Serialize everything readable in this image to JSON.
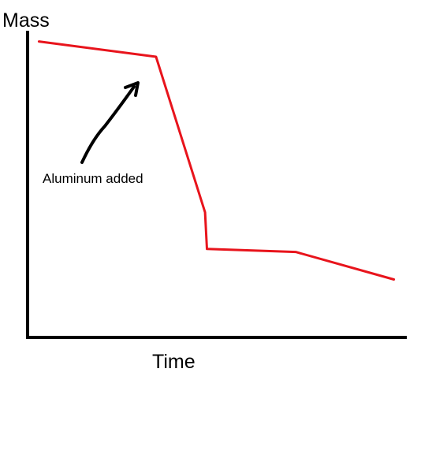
{
  "chart_data": {
    "type": "line",
    "title": "",
    "xlabel": "Time",
    "ylabel": "Mass",
    "grid": false,
    "legend": "none",
    "axis_ticks": false,
    "series": [
      {
        "color": "#e8141c",
        "points": [
          {
            "x": 0.03,
            "y": 0.97
          },
          {
            "x": 0.34,
            "y": 0.92
          },
          {
            "x": 0.47,
            "y": 0.41
          },
          {
            "x": 0.475,
            "y": 0.29
          },
          {
            "x": 0.71,
            "y": 0.28
          },
          {
            "x": 0.97,
            "y": 0.19
          }
        ]
      }
    ],
    "annotations": [
      {
        "text": "Aluminum added",
        "points_to": {
          "x": 0.29,
          "y": 0.9
        },
        "arrow_color": "#000000"
      }
    ],
    "xlim": [
      0,
      1
    ],
    "ylim": [
      0,
      1
    ]
  }
}
